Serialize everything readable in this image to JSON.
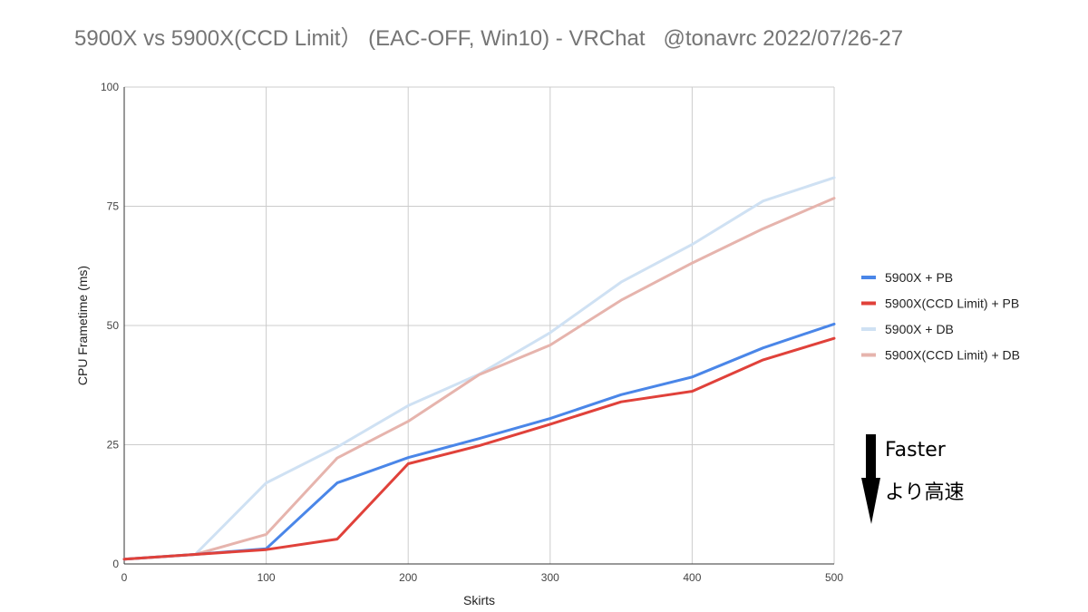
{
  "chart_data": {
    "type": "line",
    "title": "5900X vs 5900X(CCD Limit） (EAC-OFF, Win10) - VRChat   @tonavrc 2022/07/26-27",
    "xlabel": "Skirts",
    "ylabel": "CPU Frametime (ms)",
    "xlim": [
      0,
      500
    ],
    "ylim": [
      0,
      100
    ],
    "x_ticks": [
      0,
      100,
      200,
      300,
      400,
      500
    ],
    "y_ticks": [
      0,
      25,
      50,
      75,
      100
    ],
    "x": [
      0,
      50,
      100,
      150,
      200,
      250,
      300,
      350,
      400,
      450,
      500
    ],
    "grid": true,
    "legend_position": "right",
    "series": [
      {
        "name": "5900X + PB",
        "color": "#4a86e8",
        "width": 3,
        "values": [
          1,
          2,
          3.2,
          17,
          22.3,
          26.3,
          30.5,
          35.5,
          39.2,
          45.3,
          50.3
        ]
      },
      {
        "name": "5900X(CCD Limit) + PB",
        "color": "#e0413a",
        "width": 3,
        "values": [
          1,
          2,
          3,
          5.2,
          21,
          24.8,
          29.3,
          34,
          36.2,
          42.8,
          47.3
        ]
      },
      {
        "name": "5900X + DB",
        "color": "#cfe1f3",
        "width": 3,
        "values": [
          1,
          2,
          17,
          24.5,
          33.2,
          39.8,
          48.5,
          59.1,
          67,
          76.1,
          81
        ]
      },
      {
        "name": "5900X(CCD Limit) + DB",
        "color": "#e6b4ad",
        "width": 3,
        "values": [
          1,
          2,
          6.2,
          22.2,
          29.9,
          39.7,
          45.9,
          55.3,
          63.1,
          70.3,
          76.7
        ]
      }
    ],
    "annotations": {
      "faster_en": "Faster",
      "faster_ja": "より高速",
      "arrow_icon": "down-arrow-icon"
    }
  },
  "colors": {
    "grid": "#cccccc",
    "axis": "#333333",
    "title": "#757575"
  }
}
